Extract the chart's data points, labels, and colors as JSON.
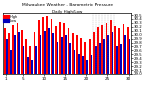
{
  "title": "Milwaukee Weather - Barometric Pressure",
  "subtitle": "Daily High/Low",
  "ylim": [
    29.0,
    30.55
  ],
  "high_color": "#FF0000",
  "low_color": "#0000BB",
  "background_color": "#FFFFFF",
  "dashed_region_start": 21,
  "dashed_region_end": 25,
  "highs": [
    30.18,
    30.05,
    30.25,
    30.3,
    30.12,
    29.88,
    29.72,
    30.08,
    30.38,
    30.45,
    30.48,
    30.4,
    30.22,
    30.32,
    30.3,
    30.18,
    30.05,
    29.98,
    29.92,
    29.82,
    29.88,
    30.08,
    30.2,
    30.25,
    30.3,
    30.38,
    30.22,
    30.18,
    30.28,
    30.2
  ],
  "lows": [
    29.88,
    29.6,
    29.98,
    30.08,
    29.7,
    29.42,
    29.35,
    29.7,
    29.98,
    30.1,
    30.18,
    30.05,
    29.82,
    29.95,
    29.98,
    29.78,
    29.6,
    29.52,
    29.45,
    29.35,
    29.48,
    29.7,
    29.78,
    29.9,
    29.98,
    30.08,
    29.7,
    29.75,
    29.98,
    29.88
  ],
  "ytick_vals": [
    29.0,
    29.1,
    29.2,
    29.3,
    29.4,
    29.5,
    29.6,
    29.7,
    29.8,
    29.9,
    30.0,
    30.1,
    30.2,
    30.3,
    30.4,
    30.5
  ],
  "xtick_positions": [
    0,
    4,
    9,
    14,
    19,
    24,
    29
  ],
  "xtick_labels": [
    "1",
    "5",
    "10",
    "15",
    "20",
    "25",
    "30"
  ]
}
